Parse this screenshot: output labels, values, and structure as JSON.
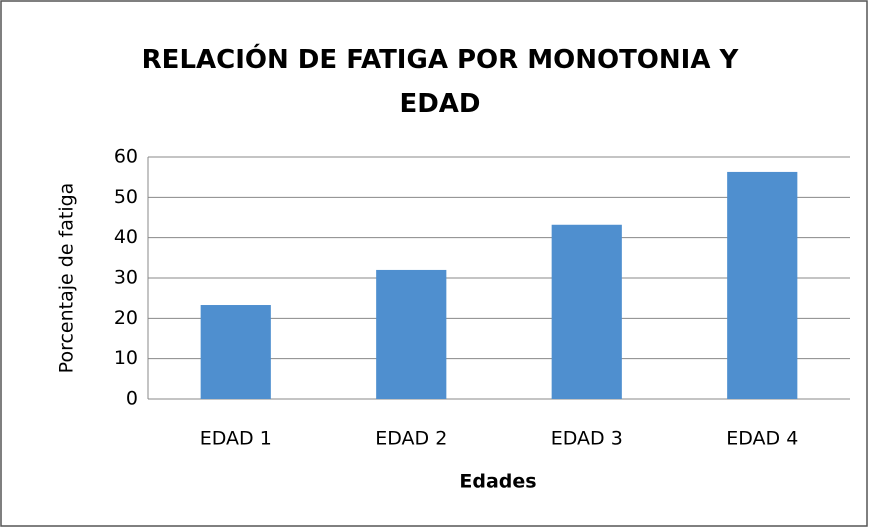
{
  "chart_data": {
    "type": "bar",
    "title": "RELACIÓN DE FATIGA POR MONOTONIA Y EDAD",
    "x_label": "Edades",
    "y_label": "Porcentaje de fatiga",
    "categories": [
      "EDAD 1",
      "EDAD 2",
      "EDAD 3",
      "EDAD 4"
    ],
    "values": [
      23.3,
      32,
      43.2,
      56.3
    ],
    "color": "#4f8fcf",
    "ylim": [
      0,
      60
    ],
    "yticks": [
      0,
      10,
      20,
      30,
      40,
      50,
      60
    ],
    "grid": true
  }
}
